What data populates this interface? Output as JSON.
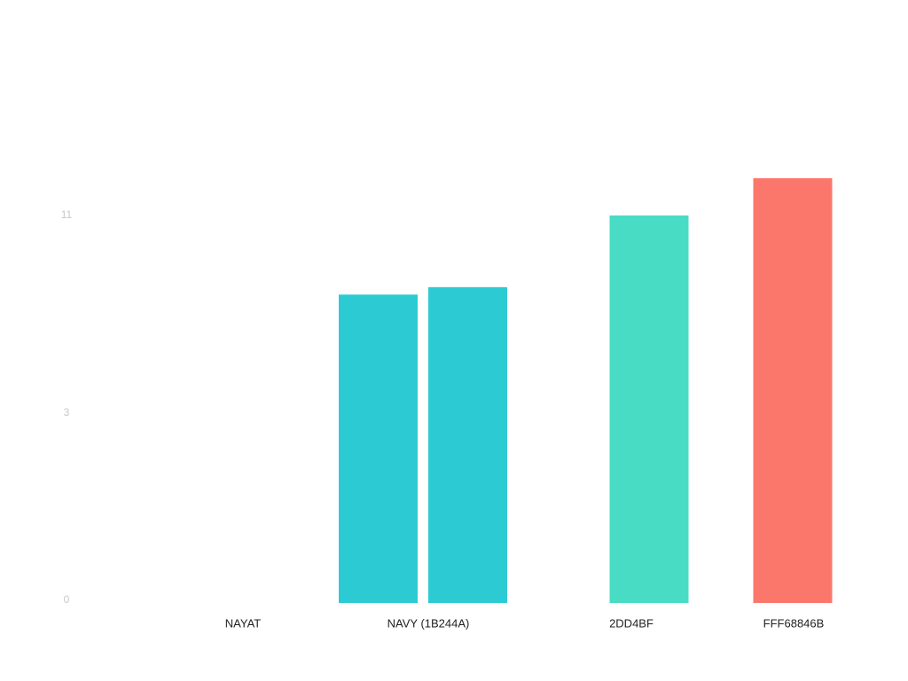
{
  "chart_data": {
    "type": "bar",
    "categories": [
      "NAYAT",
      "NAVY (1B244A)",
      "2DD4BF",
      "FFF68846B"
    ],
    "series": [
      {
        "colors": [
          "#2ccbd3",
          "#2ccbd3",
          "#48dcc4",
          "#fb776b"
        ],
        "values": [
          null,
          7.8,
          11.0,
          12.5
        ]
      },
      {
        "colors": [
          "#2ccbd3",
          "#2ccbd3",
          "#2ccbd3",
          "#2ccbd3"
        ],
        "values": [
          null,
          8.1,
          null,
          null
        ]
      }
    ],
    "ylim": [
      0,
      13
    ],
    "yticks": [
      0,
      3,
      11
    ],
    "grid": false
  }
}
